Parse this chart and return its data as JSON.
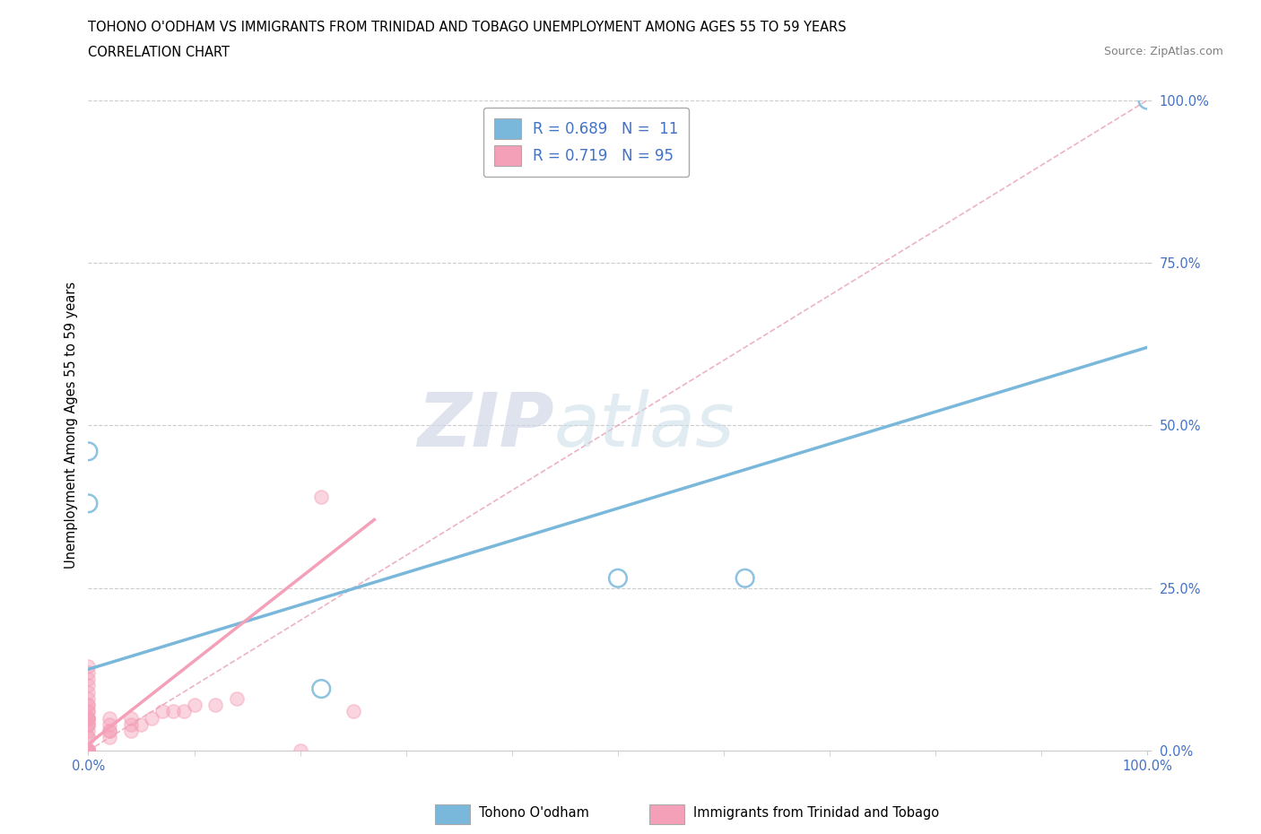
{
  "title_line1": "TOHONO O'ODHAM VS IMMIGRANTS FROM TRINIDAD AND TOBAGO UNEMPLOYMENT AMONG AGES 55 TO 59 YEARS",
  "title_line2": "CORRELATION CHART",
  "source": "Source: ZipAtlas.com",
  "ylabel": "Unemployment Among Ages 55 to 59 years",
  "xlim": [
    0.0,
    1.0
  ],
  "ylim": [
    0.0,
    1.0
  ],
  "ytick_labels": [
    "0.0%",
    "25.0%",
    "50.0%",
    "75.0%",
    "100.0%"
  ],
  "ytick_values": [
    0.0,
    0.25,
    0.5,
    0.75,
    1.0
  ],
  "watermark_zip": "ZIP",
  "watermark_atlas": "atlas",
  "legend_r1": "R = 0.689",
  "legend_n1": "N =  11",
  "legend_r2": "R = 0.719",
  "legend_n2": "N = 95",
  "blue_color": "#7ab8db",
  "pink_color": "#f4a0b8",
  "blue_scatter_x": [
    0.0,
    0.0,
    0.22,
    0.5,
    0.62,
    1.0
  ],
  "blue_scatter_y": [
    0.46,
    0.38,
    0.095,
    0.265,
    0.265,
    1.0
  ],
  "pink_scatter_x": [
    0.0,
    0.0,
    0.0,
    0.0,
    0.0,
    0.0,
    0.0,
    0.0,
    0.0,
    0.0,
    0.0,
    0.0,
    0.0,
    0.0,
    0.0,
    0.0,
    0.0,
    0.0,
    0.0,
    0.0,
    0.0,
    0.0,
    0.0,
    0.0,
    0.0,
    0.0,
    0.0,
    0.0,
    0.0,
    0.0,
    0.0,
    0.0,
    0.0,
    0.0,
    0.0,
    0.0,
    0.0,
    0.0,
    0.0,
    0.0,
    0.0,
    0.0,
    0.0,
    0.0,
    0.0,
    0.0,
    0.0,
    0.0,
    0.0,
    0.0,
    0.0,
    0.0,
    0.0,
    0.0,
    0.0,
    0.0,
    0.0,
    0.0,
    0.0,
    0.0,
    0.0,
    0.0,
    0.0,
    0.0,
    0.0,
    0.0,
    0.0,
    0.0,
    0.0,
    0.0,
    0.02,
    0.02,
    0.02,
    0.02,
    0.02,
    0.04,
    0.04,
    0.04,
    0.05,
    0.06,
    0.07,
    0.08,
    0.09,
    0.1,
    0.12,
    0.14,
    0.2,
    0.22,
    0.25
  ],
  "pink_scatter_y": [
    0.0,
    0.0,
    0.0,
    0.0,
    0.0,
    0.0,
    0.0,
    0.0,
    0.0,
    0.0,
    0.0,
    0.0,
    0.0,
    0.0,
    0.0,
    0.0,
    0.0,
    0.0,
    0.0,
    0.0,
    0.0,
    0.0,
    0.0,
    0.0,
    0.0,
    0.0,
    0.0,
    0.0,
    0.0,
    0.0,
    0.0,
    0.0,
    0.0,
    0.0,
    0.0,
    0.0,
    0.0,
    0.0,
    0.0,
    0.0,
    0.0,
    0.0,
    0.0,
    0.0,
    0.0,
    0.0,
    0.0,
    0.0,
    0.0,
    0.0,
    0.02,
    0.02,
    0.03,
    0.04,
    0.05,
    0.05,
    0.06,
    0.07,
    0.08,
    0.09,
    0.1,
    0.11,
    0.12,
    0.13,
    0.04,
    0.04,
    0.05,
    0.05,
    0.06,
    0.07,
    0.02,
    0.03,
    0.03,
    0.04,
    0.05,
    0.03,
    0.04,
    0.05,
    0.04,
    0.05,
    0.06,
    0.06,
    0.06,
    0.07,
    0.07,
    0.08,
    0.0,
    0.39,
    0.06
  ],
  "blue_trend_x": [
    0.0,
    1.0
  ],
  "blue_trend_y": [
    0.125,
    0.62
  ],
  "pink_trend_x": [
    0.0,
    0.27
  ],
  "pink_trend_y": [
    0.01,
    0.355
  ],
  "diag_color": "#e8a0b4",
  "grid_color": "#cccccc",
  "tick_color": "#4472c4",
  "background_color": "#ffffff"
}
